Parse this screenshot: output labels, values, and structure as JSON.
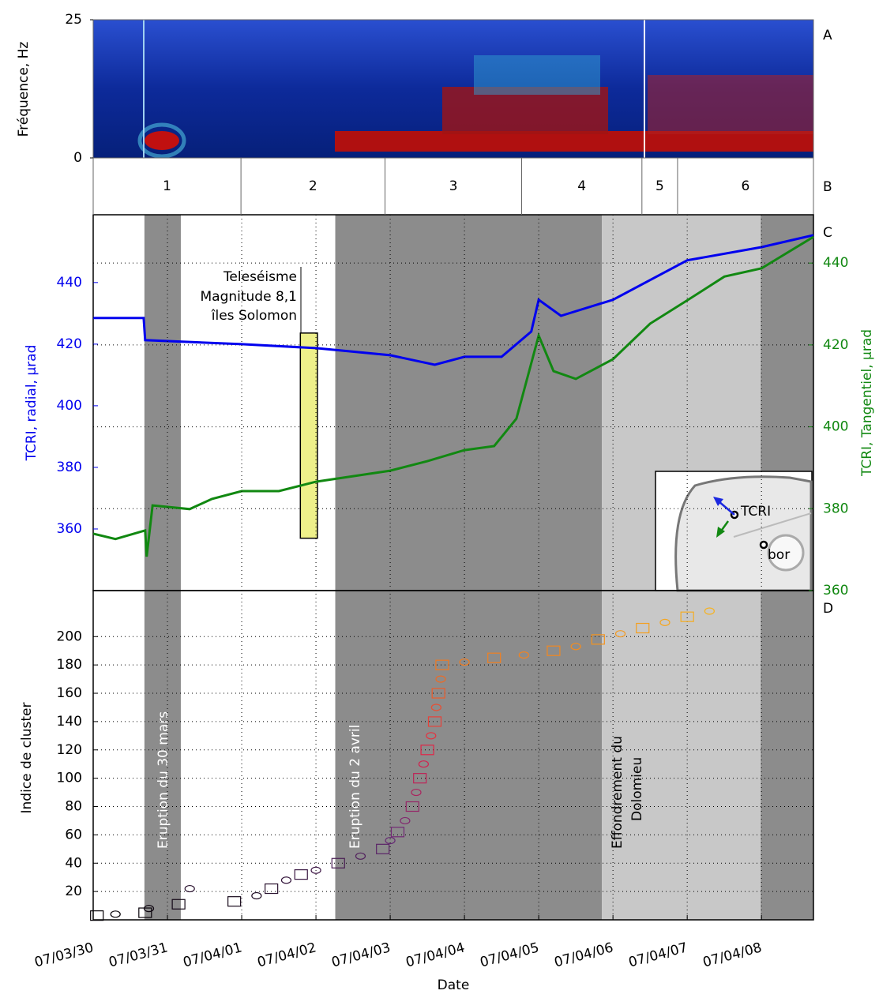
{
  "chart_data": [
    {
      "type": "spectrogram",
      "panel": "A",
      "ylabel": "Fréquence, Hz",
      "ylim": [
        0,
        25
      ],
      "yticks": [
        0,
        25
      ]
    },
    {
      "type": "phases",
      "panel": "B",
      "categories": [
        "1",
        "2",
        "3",
        "4",
        "5",
        "6"
      ],
      "edges": [
        0,
        1.99,
        3.93,
        5.77,
        7.39,
        7.87,
        9.7
      ]
    },
    {
      "type": "line",
      "panel": "C",
      "ylabel": "TCRI, radial,  µrad",
      "y2label": "TCRI, Tangentiel,  µrad",
      "ylim": [
        340,
        462
      ],
      "yticks": [
        360,
        380,
        400,
        420,
        440
      ],
      "y2lim": [
        360,
        451.8
      ],
      "y2ticks": [
        360,
        380,
        400,
        420,
        440
      ],
      "grid": true,
      "periods": [
        {
          "start": 0.69,
          "end": 1.18,
          "color": "#8c8c8c"
        },
        {
          "start": 3.26,
          "end": 6.85,
          "color": "#8c8c8c"
        },
        {
          "start": 6.85,
          "end": 8.99,
          "color": "#c8c8c8"
        },
        {
          "start": 8.99,
          "end": 9.7,
          "color": "#8c8c8c"
        }
      ],
      "series": [
        {
          "color": "#0000ee",
          "axis": "y",
          "x": [
            0,
            0.68,
            0.7,
            2,
            3,
            4,
            4.6,
            5.0,
            5.5,
            5.9,
            6.0,
            6.3,
            7.0,
            8.0,
            9.0,
            9.7
          ],
          "values": [
            428.5,
            428.5,
            421.3,
            420,
            418.7,
            416.4,
            413.3,
            415.9,
            415.9,
            424.1,
            434.4,
            429.2,
            434.4,
            447.2,
            451.5,
            455.4
          ]
        },
        {
          "color": "#118811",
          "axis": "y2",
          "x": [
            0,
            0.3,
            0.7,
            0.72,
            0.8,
            1.3,
            1.6,
            2.0,
            2.5,
            3,
            4,
            4.5,
            5.0,
            5.4,
            5.7,
            6.0,
            6.2,
            6.5,
            7.0,
            7.5,
            8.0,
            8.5,
            9.0,
            9.7
          ],
          "values": [
            373.9,
            372.6,
            374.7,
            368.3,
            380.8,
            379.9,
            382.4,
            384.3,
            384.3,
            386.6,
            389.3,
            391.6,
            394.3,
            395.3,
            402.0,
            422.3,
            413.6,
            411.7,
            416.5,
            425.2,
            430.9,
            436.7,
            438.7,
            446.4
          ]
        }
      ],
      "highlight": {
        "x": [
          2.79,
          3.02
        ],
        "y": [
          357,
          423.6
        ],
        "color": "#eef08a"
      },
      "annotation_lines": [
        "Teleséisme",
        "Magnitude 8,1",
        "îles Solomon"
      ],
      "inset_labels": [
        "TCRI",
        "bor"
      ]
    },
    {
      "type": "scatter",
      "panel": "D",
      "ylabel": "Indice de cluster",
      "xlabel": "Date",
      "xlim": [
        0,
        9.7
      ],
      "xticks": [
        {
          "value": 0,
          "label": "07/03/30"
        },
        {
          "value": 1,
          "label": "07/03/31"
        },
        {
          "value": 2,
          "label": "07/04/01"
        },
        {
          "value": 3,
          "label": "07/04/02"
        },
        {
          "value": 4,
          "label": "07/04/03"
        },
        {
          "value": 5,
          "label": "07/04/04"
        },
        {
          "value": 6,
          "label": "07/04/05"
        },
        {
          "value": 7,
          "label": "07/04/06"
        },
        {
          "value": 8,
          "label": "07/04/07"
        },
        {
          "value": 9,
          "label": "07/04/08"
        }
      ],
      "ylim": [
        0,
        232.5
      ],
      "yticks": [
        20,
        40,
        60,
        80,
        100,
        120,
        140,
        160,
        180,
        200
      ],
      "colormap": [
        "#000000",
        "#6a2a78",
        "#e0204a",
        "#f07020",
        "#f8c820"
      ],
      "x": [
        0.05,
        0.3,
        0.7,
        0.75,
        1.15,
        1.3,
        1.9,
        2.2,
        2.4,
        2.6,
        2.8,
        3.0,
        3.3,
        3.6,
        3.9,
        4.0,
        4.1,
        4.2,
        4.3,
        4.35,
        4.4,
        4.45,
        4.5,
        4.55,
        4.6,
        4.62,
        4.65,
        4.68,
        4.7,
        5.0,
        5.4,
        5.8,
        6.2,
        6.5,
        6.8,
        7.1,
        7.4,
        7.7,
        8.0,
        8.3
      ],
      "values": [
        3,
        4,
        5,
        8,
        11,
        22,
        13,
        17,
        22,
        28,
        32,
        35,
        40,
        45,
        50,
        56,
        62,
        70,
        80,
        90,
        100,
        110,
        120,
        130,
        140,
        150,
        160,
        170,
        180,
        182,
        185,
        187,
        190,
        193,
        198,
        202,
        206,
        210,
        214,
        218
      ],
      "annotations": [
        "Eruption du 30 mars",
        "Eruption du 2 avril",
        "Effondrement du",
        "Dolomieu"
      ]
    }
  ]
}
